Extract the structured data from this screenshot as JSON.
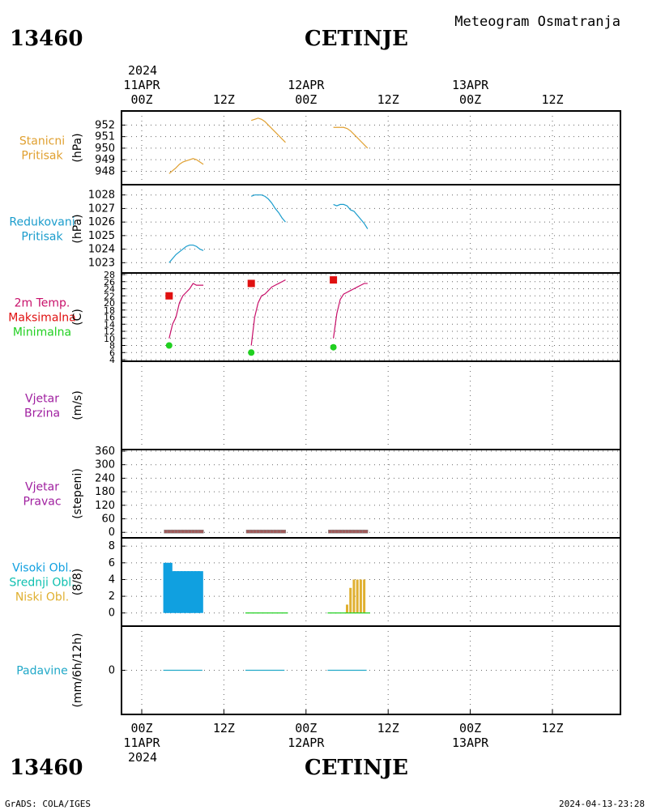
{
  "header": {
    "station_id": "13460",
    "station_name": "CETINJE",
    "chart_title": "Meteogram Osmatranja",
    "year": "2024",
    "top_date_labels": [
      "11APR",
      "12APR",
      "13APR"
    ],
    "top_hour_labels": [
      "00Z",
      "12Z",
      "00Z",
      "12Z",
      "00Z",
      "12Z"
    ]
  },
  "footer": {
    "station_id": "13460",
    "station_name": "CETINJE",
    "credit": "GrADS: COLA/IGES",
    "timestamp": "2024-04-13-23:28",
    "bottom_hour_labels": [
      "00Z",
      "12Z",
      "00Z",
      "12Z",
      "00Z",
      "12Z"
    ],
    "bottom_date_labels": [
      "11APR",
      "12APR",
      "13APR"
    ],
    "year": "2024"
  },
  "colors": {
    "station_pressure": "#e0a030",
    "reduced_pressure": "#1a9ccc",
    "temperature": "#c8106a",
    "max_temp": "#e01010",
    "min_temp": "#20d020",
    "wind": "#a020a0",
    "high_cloud": "#10a0e0",
    "mid_cloud": "#10c0b0",
    "low_cloud": "#e0b030",
    "precip": "#20a8c8"
  },
  "chart_data": [
    {
      "id": "station_pressure",
      "type": "line",
      "labels": [
        "Stanicni",
        "Pritisak"
      ],
      "ylabel": "(hPa)",
      "yticks": [
        948,
        949,
        950,
        951,
        952
      ],
      "ylim": [
        947.4,
        952.8
      ],
      "series": [
        {
          "x": [
            8,
            10,
            11,
            12,
            13,
            14,
            15,
            16,
            17,
            18
          ],
          "y": [
            947.8,
            948.3,
            948.6,
            948.8,
            948.9,
            949.0,
            949.1,
            949.0,
            948.8,
            948.6
          ]
        },
        {
          "x": [
            32,
            33,
            34,
            35,
            36,
            37,
            38,
            39,
            40,
            41,
            42
          ],
          "y": [
            952.4,
            952.5,
            952.6,
            952.5,
            952.3,
            952.0,
            951.7,
            951.4,
            951.1,
            950.8,
            950.5
          ]
        },
        {
          "x": [
            56,
            57,
            58,
            59,
            60,
            61,
            62,
            63,
            64,
            65,
            66
          ],
          "y": [
            951.8,
            951.8,
            951.8,
            951.8,
            951.7,
            951.5,
            951.2,
            950.9,
            950.6,
            950.3,
            950.0
          ]
        }
      ]
    },
    {
      "id": "reduced_pressure",
      "type": "line",
      "labels": [
        "Redukovani",
        "Pritisak"
      ],
      "ylabel": "(hPa)",
      "yticks": [
        1023,
        1024,
        1025,
        1026,
        1027,
        1028
      ],
      "ylim": [
        1022.6,
        1028.4
      ],
      "series": [
        {
          "x": [
            8,
            9,
            10,
            11,
            12,
            13,
            14,
            15,
            16,
            17,
            18
          ],
          "y": [
            1023.0,
            1023.3,
            1023.6,
            1023.8,
            1024.0,
            1024.2,
            1024.3,
            1024.3,
            1024.2,
            1024.0,
            1023.9
          ]
        },
        {
          "x": [
            32,
            33,
            34,
            35,
            36,
            37,
            38,
            39,
            40,
            41,
            42
          ],
          "y": [
            1027.9,
            1028.0,
            1028.0,
            1028.0,
            1027.9,
            1027.7,
            1027.4,
            1027.0,
            1026.7,
            1026.3,
            1026.0
          ]
        },
        {
          "x": [
            56,
            57,
            58,
            59,
            60,
            61,
            62,
            63,
            64,
            65,
            66
          ],
          "y": [
            1027.3,
            1027.2,
            1027.3,
            1027.3,
            1027.2,
            1026.9,
            1026.8,
            1026.5,
            1026.2,
            1025.9,
            1025.5
          ]
        }
      ]
    },
    {
      "id": "temperature",
      "type": "line",
      "labels": [
        "2m Temp.",
        "Maksimalna",
        "Minimalna"
      ],
      "ylabel": "(C)",
      "yticks": [
        4,
        6,
        8,
        10,
        12,
        14,
        16,
        18,
        20,
        22,
        24,
        26,
        28
      ],
      "ylim": [
        4,
        28
      ],
      "series": [
        {
          "x": [
            8,
            9,
            10,
            11,
            12,
            13,
            14,
            15,
            16,
            17,
            18
          ],
          "y": [
            10,
            14,
            16,
            20,
            22,
            23,
            24,
            25.5,
            25,
            25,
            25
          ]
        },
        {
          "x": [
            32,
            33,
            34,
            35,
            36,
            37,
            38,
            39,
            40,
            41,
            42
          ],
          "y": [
            8,
            16,
            20,
            22,
            22.5,
            23.5,
            24.5,
            25,
            25.5,
            26,
            26.5
          ]
        },
        {
          "x": [
            56,
            57,
            58,
            59,
            60,
            61,
            62,
            63,
            64,
            65,
            66
          ],
          "y": [
            10,
            17,
            21,
            22.5,
            23,
            23.5,
            24,
            24.5,
            25,
            25.5,
            25.5
          ]
        }
      ],
      "max_points": [
        {
          "x": 8,
          "y": 22
        },
        {
          "x": 32,
          "y": 25.5
        },
        {
          "x": 56,
          "y": 26.5
        }
      ],
      "min_points": [
        {
          "x": 8,
          "y": 8
        },
        {
          "x": 32,
          "y": 6
        },
        {
          "x": 56,
          "y": 7.5
        }
      ]
    },
    {
      "id": "wind_speed",
      "type": "line",
      "labels": [
        "Vjetar",
        "Brzina"
      ],
      "ylabel": "(m/s)",
      "yticks": [],
      "ylim": [
        0,
        1
      ],
      "series": []
    },
    {
      "id": "wind_direction",
      "type": "scatter",
      "labels": [
        "Vjetar",
        "Pravac"
      ],
      "ylabel": "(stepeni)",
      "yticks": [
        0,
        60,
        120,
        180,
        240,
        300,
        360
      ],
      "ylim": [
        -10,
        360
      ],
      "calm_x": [
        7,
        8,
        9,
        10,
        11,
        12,
        13,
        14,
        15,
        16,
        17,
        31,
        32,
        33,
        34,
        35,
        36,
        37,
        38,
        39,
        40,
        41,
        55,
        56,
        57,
        58,
        59,
        60,
        61,
        62,
        63,
        64,
        65
      ]
    },
    {
      "id": "clouds",
      "type": "bar",
      "labels": [
        "Visoki Obl.",
        "Srednji Obl.",
        "Niski Obl."
      ],
      "ylabel": "(8/8)",
      "yticks": [
        0,
        2,
        4,
        6,
        8
      ],
      "ylim": [
        -0.8,
        8.6
      ],
      "high": {
        "x": [
          7,
          8,
          9,
          10,
          11,
          12,
          13,
          14,
          15,
          16,
          17
        ],
        "y": [
          6,
          6,
          5,
          5,
          5,
          5,
          5,
          5,
          5,
          5,
          5
        ]
      },
      "low": {
        "x": [
          60,
          61,
          62,
          63,
          64,
          65
        ],
        "y": [
          1,
          3,
          4,
          4,
          4,
          4
        ]
      },
      "zero_ranges": [
        [
          31,
          42
        ],
        [
          55,
          66
        ]
      ]
    },
    {
      "id": "precipitation",
      "type": "line",
      "labels": [
        "Padavine"
      ],
      "ylabel": "(mm/6h/12h)",
      "yticks": [
        0
      ],
      "ylim": [
        -2,
        2
      ],
      "zero_ranges": [
        [
          7,
          17
        ],
        [
          31,
          41
        ],
        [
          55,
          65
        ]
      ]
    }
  ]
}
